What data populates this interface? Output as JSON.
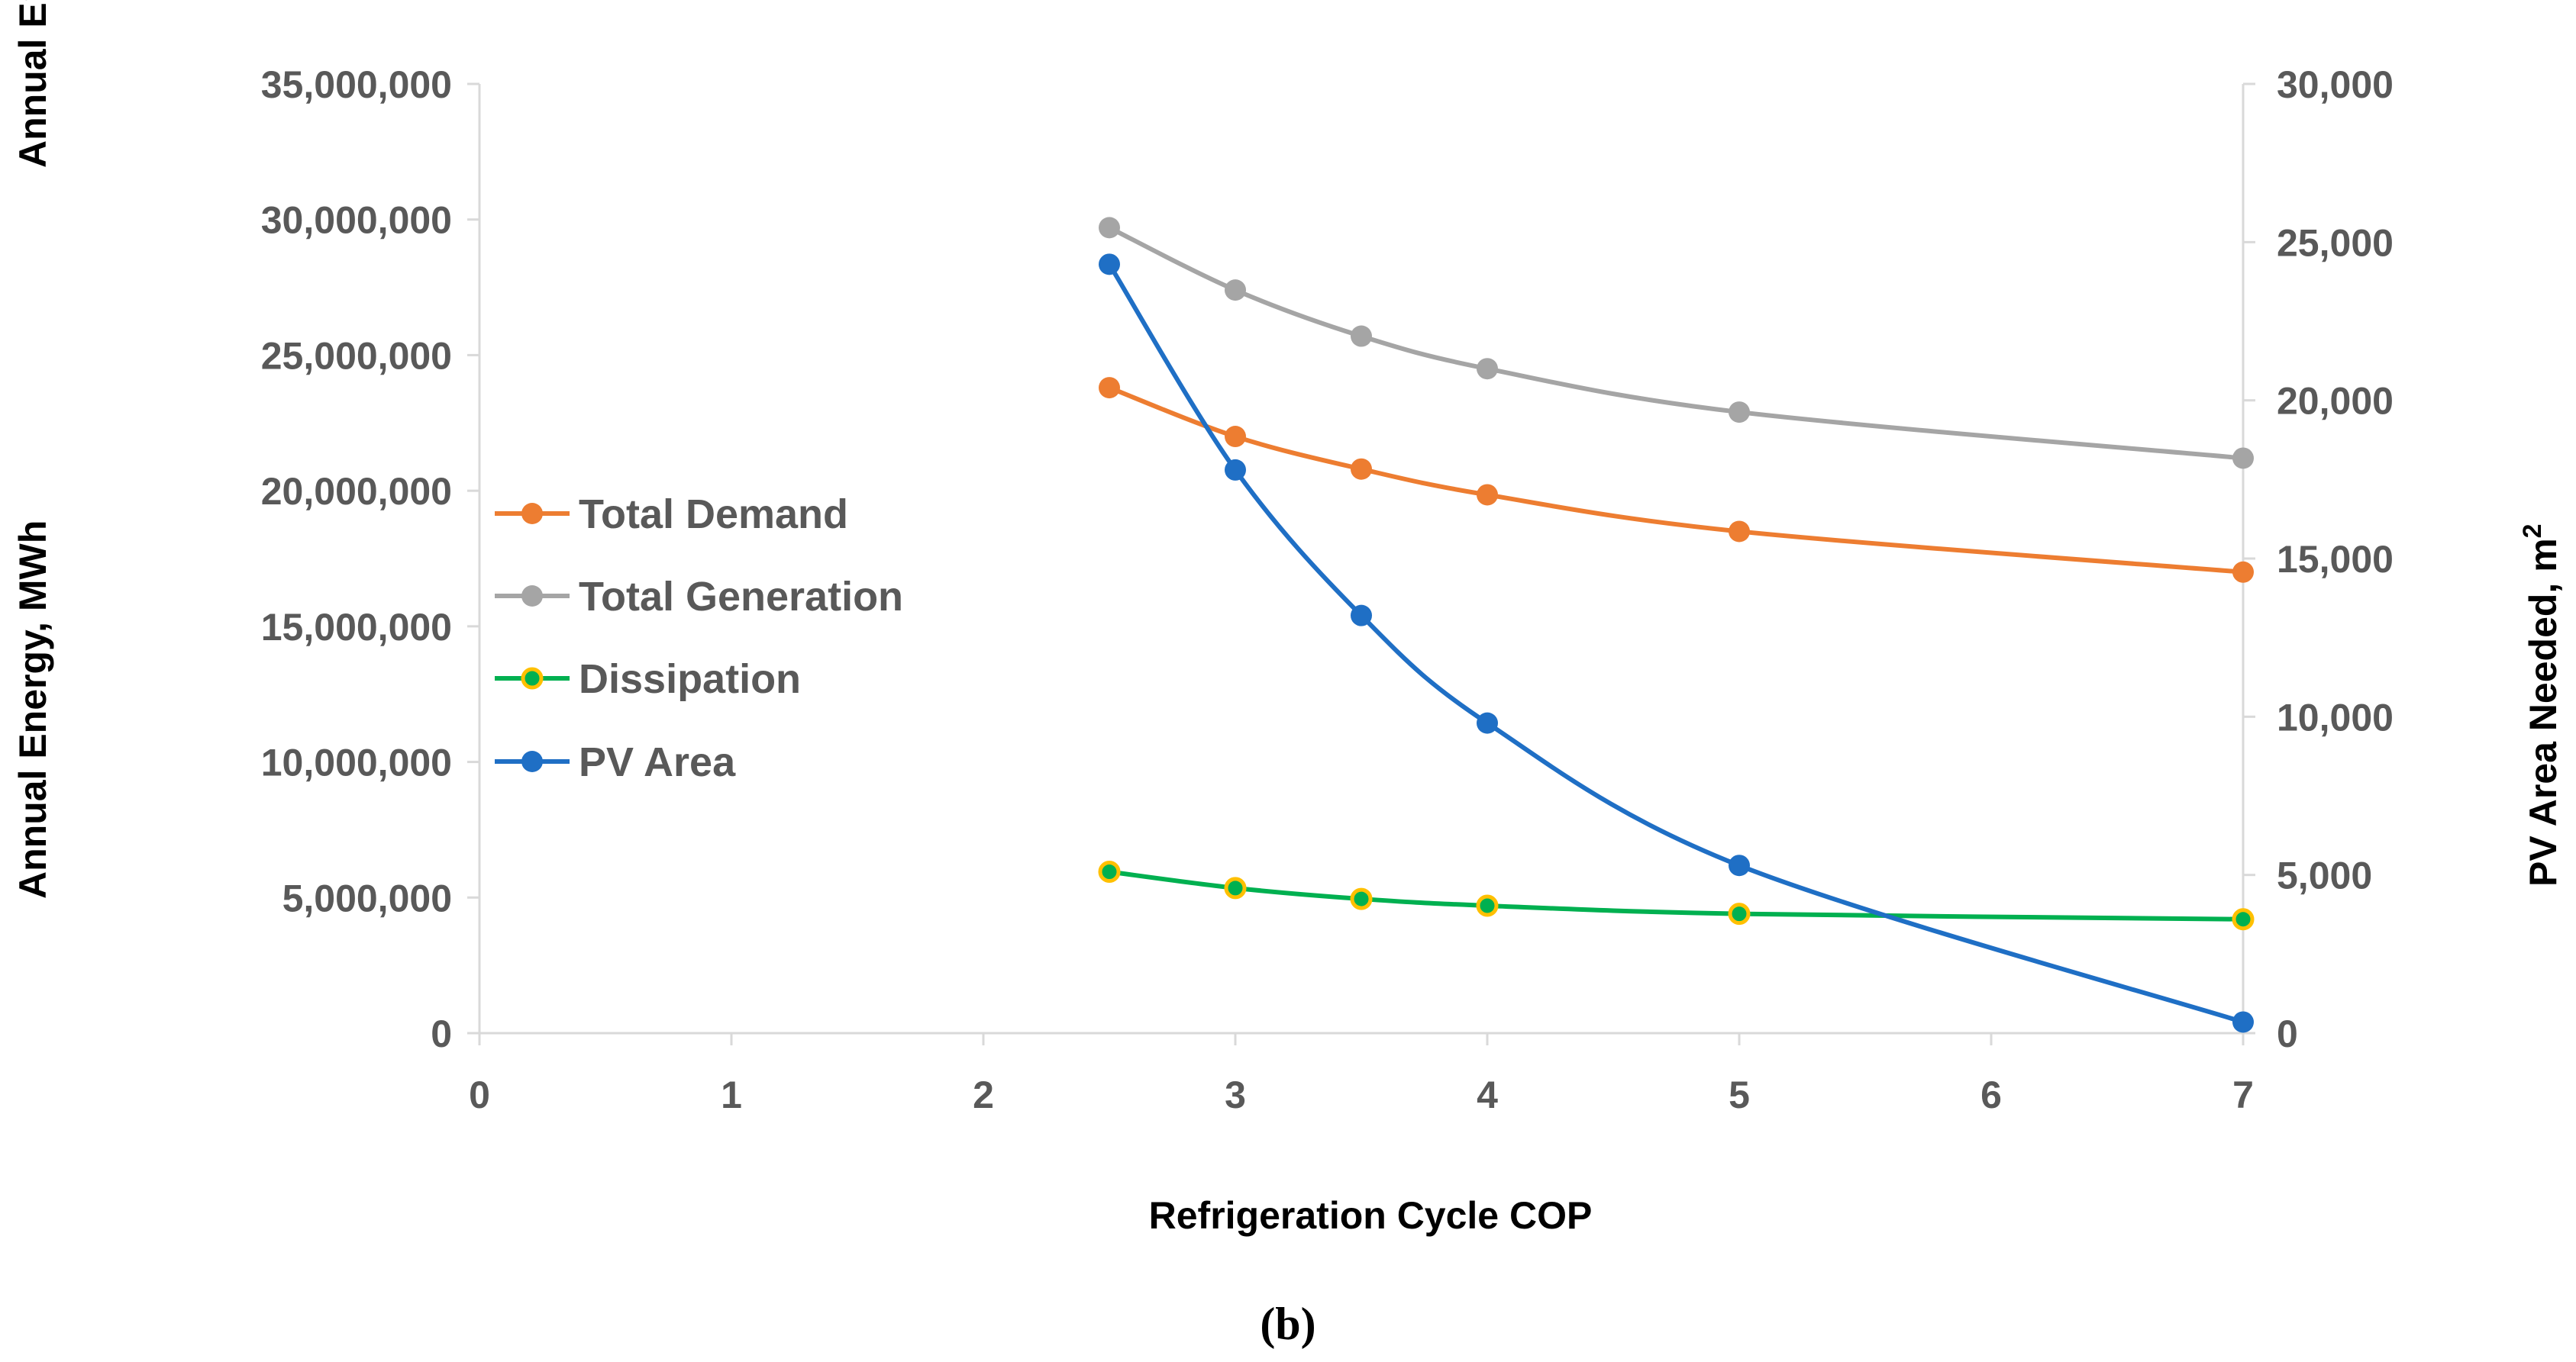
{
  "chart_data": {
    "type": "line",
    "caption": "(b)",
    "xlabel": "Refrigeration Cycle COP",
    "ylabel": "Annual Energy, MWh",
    "ylabel_clipped": "Annual Ene",
    "y2label_main": "PV Area Needed, m",
    "y2label_sup": "2",
    "xlim": [
      0,
      7
    ],
    "ylim": [
      0,
      35000000
    ],
    "y2lim": [
      0,
      30000
    ],
    "x_ticks": [
      "0",
      "1",
      "2",
      "3",
      "4",
      "5",
      "6",
      "7"
    ],
    "y_ticks": [
      "0",
      "5,000,000",
      "10,000,000",
      "15,000,000",
      "20,000,000",
      "25,000,000",
      "30,000,000",
      "35,000,000"
    ],
    "y2_ticks": [
      "0",
      "5,000",
      "10,000",
      "15,000",
      "20,000",
      "25,000",
      "30,000"
    ],
    "legend_position": "left",
    "series": [
      {
        "name": "Total Demand",
        "axis": "left",
        "color": "#ED7D31",
        "marker_fill": "#ED7D31",
        "marker_edge": "#ED7D31",
        "x": [
          2.5,
          3,
          3.5,
          4,
          5,
          7
        ],
        "values": [
          23800000,
          22000000,
          20800000,
          19850000,
          18500000,
          17000000
        ]
      },
      {
        "name": "Total Generation",
        "axis": "left",
        "color": "#A5A5A5",
        "marker_fill": "#A5A5A5",
        "marker_edge": "#A5A5A5",
        "x": [
          2.5,
          3,
          3.5,
          4,
          5,
          7
        ],
        "values": [
          29700000,
          27400000,
          25700000,
          24500000,
          22900000,
          21200000
        ]
      },
      {
        "name": "Dissipation",
        "axis": "left",
        "color": "#00B050",
        "marker_fill": "#00B050",
        "marker_edge": "#FFC000",
        "x": [
          2.5,
          3,
          3.5,
          4,
          5,
          7
        ],
        "values": [
          5950000,
          5350000,
          4950000,
          4700000,
          4400000,
          4200000
        ]
      },
      {
        "name": "PV Area",
        "axis": "right",
        "color": "#1F6FC5",
        "marker_fill": "#1F6FC5",
        "marker_edge": "#1F6FC5",
        "x": [
          2.5,
          3,
          3.5,
          4,
          5,
          7
        ],
        "values": [
          24300,
          17800,
          13200,
          9800,
          5300,
          350
        ]
      }
    ]
  }
}
